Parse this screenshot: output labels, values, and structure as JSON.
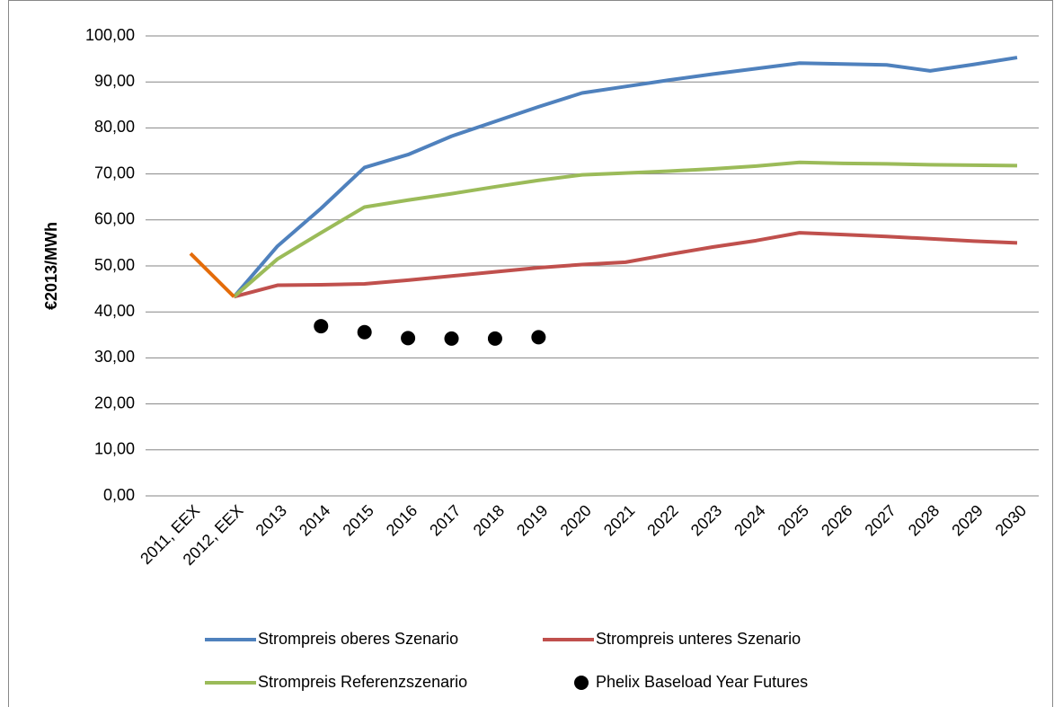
{
  "chart_data": {
    "type": "line",
    "y_label": "€2013/MWh",
    "categories": [
      "2011, EEX",
      "2012, EEX",
      "2013",
      "2014",
      "2015",
      "2016",
      "2017",
      "2018",
      "2019",
      "2020",
      "2021",
      "2022",
      "2023",
      "2024",
      "2025",
      "2026",
      "2027",
      "2028",
      "2029",
      "2030"
    ],
    "series": [
      {
        "name": "Strompreis oberes Szenario",
        "color": "#4f81bd",
        "values": [
          null,
          43.3,
          54.3,
          62.5,
          71.4,
          74.2,
          78.2,
          81.4,
          84.6,
          87.6,
          89.0,
          90.4,
          91.7,
          92.9,
          94.1,
          93.9,
          93.7,
          92.4,
          93.8,
          95.3
        ]
      },
      {
        "name": "Strompreis unteres Szenario",
        "color": "#c0504d",
        "values": [
          null,
          43.3,
          45.8,
          45.9,
          46.1,
          46.9,
          47.8,
          48.7,
          49.6,
          50.3,
          50.8,
          52.5,
          54.1,
          55.5,
          57.2,
          56.8,
          56.4,
          55.9,
          55.4,
          55.0
        ]
      },
      {
        "name": "Strompreis Referenzszenario",
        "color": "#9bbb59",
        "values": [
          null,
          43.3,
          51.5,
          57.2,
          62.8,
          64.3,
          65.7,
          67.2,
          68.6,
          69.8,
          70.2,
          70.6,
          71.1,
          71.7,
          72.5,
          72.3,
          72.2,
          72.0,
          71.9,
          71.8
        ]
      },
      {
        "name": "Phelix Baseload Year Futures",
        "color": "#000000",
        "type": "scatter",
        "values": [
          null,
          null,
          null,
          36.9,
          35.6,
          34.3,
          34.2,
          34.2,
          34.5,
          null,
          null,
          null,
          null,
          null,
          null,
          null,
          null,
          null,
          null,
          null
        ]
      },
      {
        "color": "#e46c0a",
        "values": [
          52.7,
          43.3,
          null,
          null,
          null,
          null,
          null,
          null,
          null,
          null,
          null,
          null,
          null,
          null,
          null,
          null,
          null,
          null,
          null,
          null
        ]
      }
    ],
    "ylim": [
      0,
      100
    ],
    "yticks": [
      {
        "value": 0,
        "label": "0,00"
      },
      {
        "value": 10,
        "label": "10,00"
      },
      {
        "value": 20,
        "label": "20,00"
      },
      {
        "value": 30,
        "label": "30,00"
      },
      {
        "value": 40,
        "label": "40,00"
      },
      {
        "value": 50,
        "label": "50,00"
      },
      {
        "value": 60,
        "label": "60,00"
      },
      {
        "value": 70,
        "label": "70,00"
      },
      {
        "value": 80,
        "label": "80,00"
      },
      {
        "value": 90,
        "label": "90,00"
      },
      {
        "value": 100,
        "label": "100,00"
      }
    ],
    "grid": true
  }
}
